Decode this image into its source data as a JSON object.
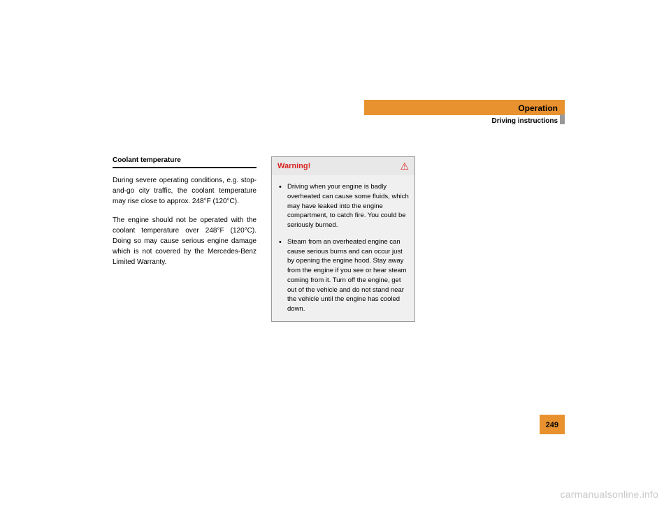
{
  "header": {
    "title": "Operation",
    "subtitle": "Driving instructions",
    "tab_bg": "#e8922f"
  },
  "left": {
    "heading": "Coolant temperature",
    "para1": "During severe operating conditions, e.g. stop-and-go city traffic, the coolant temperature may rise close to approx. 248°F (120°C).",
    "para2": "The engine should not be operated with the coolant temperature over 248°F (120°C). Doing so may cause serious engine damage which is not covered by the Mercedes-Benz Limited Warranty."
  },
  "warning": {
    "title": "Warning!",
    "icon": "⚠",
    "bullet1": "Driving when your engine is badly overheated can cause some fluids, which may have leaked into the engine compartment, to catch fire. You could be seriously burned.",
    "bullet2": "Steam from an overheated engine can cause serious burns and can occur just by opening the engine hood. Stay away from the engine if you see or hear steam coming from it. Turn off the engine, get out of the vehicle and do not stand near the vehicle until the engine has cooled down."
  },
  "pagenum": "249",
  "watermark": "carmanualsonline.info",
  "colors": {
    "warning_red": "#d92525",
    "accent": "#e8922f",
    "warning_bg": "#f0f0f0",
    "warning_header_bg": "#e8e8e8"
  }
}
